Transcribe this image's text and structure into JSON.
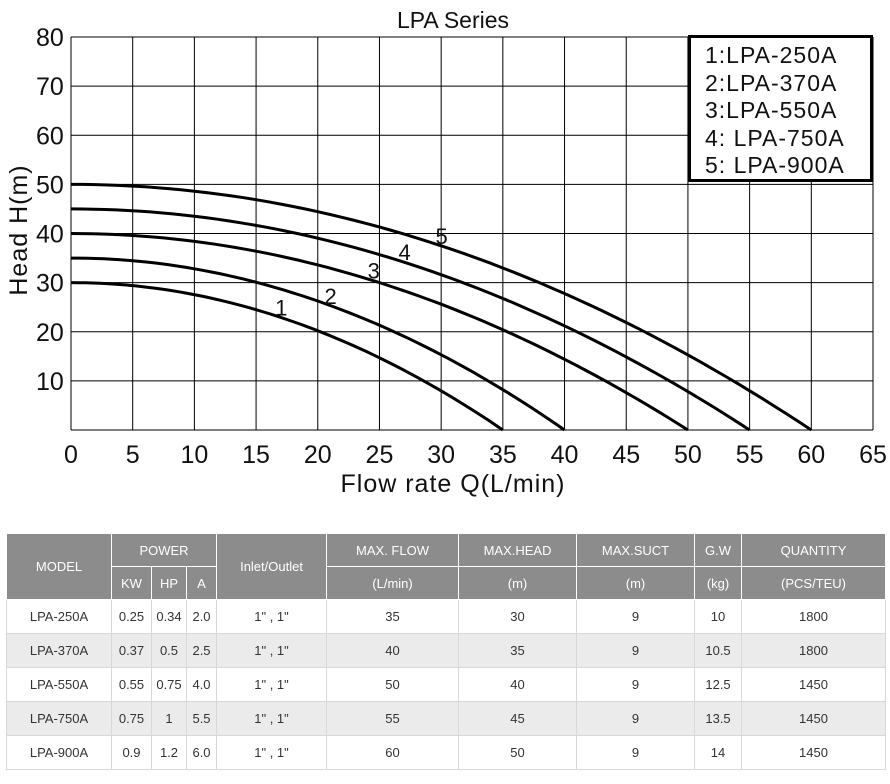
{
  "chart_data": {
    "type": "line",
    "title": "LPA Series",
    "xlabel": "Flow rate Q(L/min)",
    "ylabel": "Head H(m)",
    "xlim": [
      0,
      65
    ],
    "ylim": [
      0,
      80
    ],
    "x_ticks": [
      0,
      5,
      10,
      15,
      20,
      25,
      30,
      35,
      40,
      45,
      50,
      55,
      60,
      65
    ],
    "y_ticks": [
      10,
      20,
      30,
      40,
      50,
      60,
      70,
      80
    ],
    "grid": true,
    "legend_position": "top-right",
    "legend": [
      "1:LPA-250A",
      "2:LPA-370A",
      "3:LPA-550A",
      "4: LPA-750A",
      "5: LPA-900A"
    ],
    "series": [
      {
        "label": "1",
        "max_head": 30,
        "max_flow": 35,
        "x": [
          0,
          10,
          20,
          30,
          35
        ],
        "y": [
          30,
          26.5,
          18,
          6.5,
          0
        ]
      },
      {
        "label": "2",
        "max_head": 35,
        "max_flow": 40,
        "x": [
          0,
          10,
          20,
          30,
          40
        ],
        "y": [
          35,
          31.5,
          23.5,
          12.5,
          0
        ]
      },
      {
        "label": "3",
        "max_head": 40,
        "max_flow": 50,
        "x": [
          0,
          10,
          20,
          30,
          40,
          50
        ],
        "y": [
          40,
          37,
          31,
          22,
          11.5,
          0
        ]
      },
      {
        "label": "4",
        "max_head": 45,
        "max_flow": 55,
        "x": [
          0,
          10,
          20,
          30,
          40,
          50,
          55
        ],
        "y": [
          45,
          42,
          36,
          28.5,
          19,
          7,
          0
        ]
      },
      {
        "label": "5",
        "max_head": 50,
        "max_flow": 60,
        "x": [
          0,
          10,
          20,
          30,
          40,
          50,
          60
        ],
        "y": [
          50,
          47.5,
          42.5,
          35,
          26,
          15,
          0
        ]
      }
    ]
  },
  "table": {
    "headers": {
      "model": "MODEL",
      "power": "POWER",
      "kw": "KW",
      "hp": "HP",
      "a": "A",
      "inlet": "Inlet/Outlet",
      "flow": "MAX. FLOW",
      "flow_unit": "(L/min)",
      "head": "MAX.HEAD",
      "head_unit": "(m)",
      "suct": "MAX.SUCT",
      "suct_unit": "(m)",
      "gw": "G.W",
      "gw_unit": "(kg)",
      "qty": "QUANTITY",
      "qty_unit": "(PCS/TEU)"
    },
    "rows": [
      [
        "LPA-250A",
        "0.25",
        "0.34",
        "2.0",
        "1\" , 1\"",
        "35",
        "30",
        "9",
        "10",
        "1800"
      ],
      [
        "LPA-370A",
        "0.37",
        "0.5",
        "2.5",
        "1\" , 1\"",
        "40",
        "35",
        "9",
        "10.5",
        "1800"
      ],
      [
        "LPA-550A",
        "0.55",
        "0.75",
        "4.0",
        "1\" , 1\"",
        "50",
        "40",
        "9",
        "12.5",
        "1450"
      ],
      [
        "LPA-750A",
        "0.75",
        "1",
        "5.5",
        "1\" , 1\"",
        "55",
        "45",
        "9",
        "13.5",
        "1450"
      ],
      [
        "LPA-900A",
        "0.9",
        "1.2",
        "6.0",
        "1\" , 1\"",
        "60",
        "50",
        "9",
        "14",
        "1450"
      ]
    ]
  }
}
